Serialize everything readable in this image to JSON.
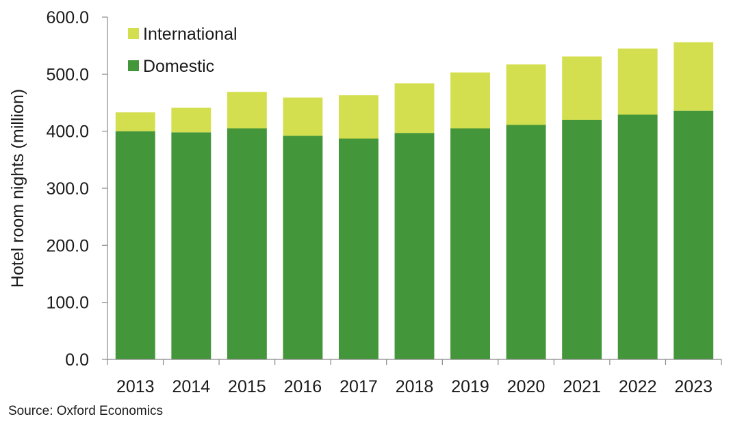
{
  "chart_data": {
    "type": "bar",
    "stacked": true,
    "categories": [
      "2013",
      "2014",
      "2015",
      "2016",
      "2017",
      "2018",
      "2019",
      "2020",
      "2021",
      "2022",
      "2023"
    ],
    "series": [
      {
        "name": "Domestic",
        "color": "#43963a",
        "values": [
          400,
          398,
          405,
          392,
          387,
          397,
          405,
          411,
          420,
          429,
          436
        ]
      },
      {
        "name": "International",
        "color": "#d4df4f",
        "values": [
          33,
          43,
          64,
          67,
          76,
          87,
          98,
          106,
          111,
          116,
          120
        ]
      }
    ],
    "ylabel": "Hotel room nights (million)",
    "xlabel": "",
    "ylim": [
      0,
      600
    ],
    "yticks": [
      "0.0",
      "100.0",
      "200.0",
      "300.0",
      "400.0",
      "500.0",
      "600.0"
    ],
    "grid": false,
    "legend_position": "top-left"
  },
  "source": "Source:  Oxford Economics"
}
